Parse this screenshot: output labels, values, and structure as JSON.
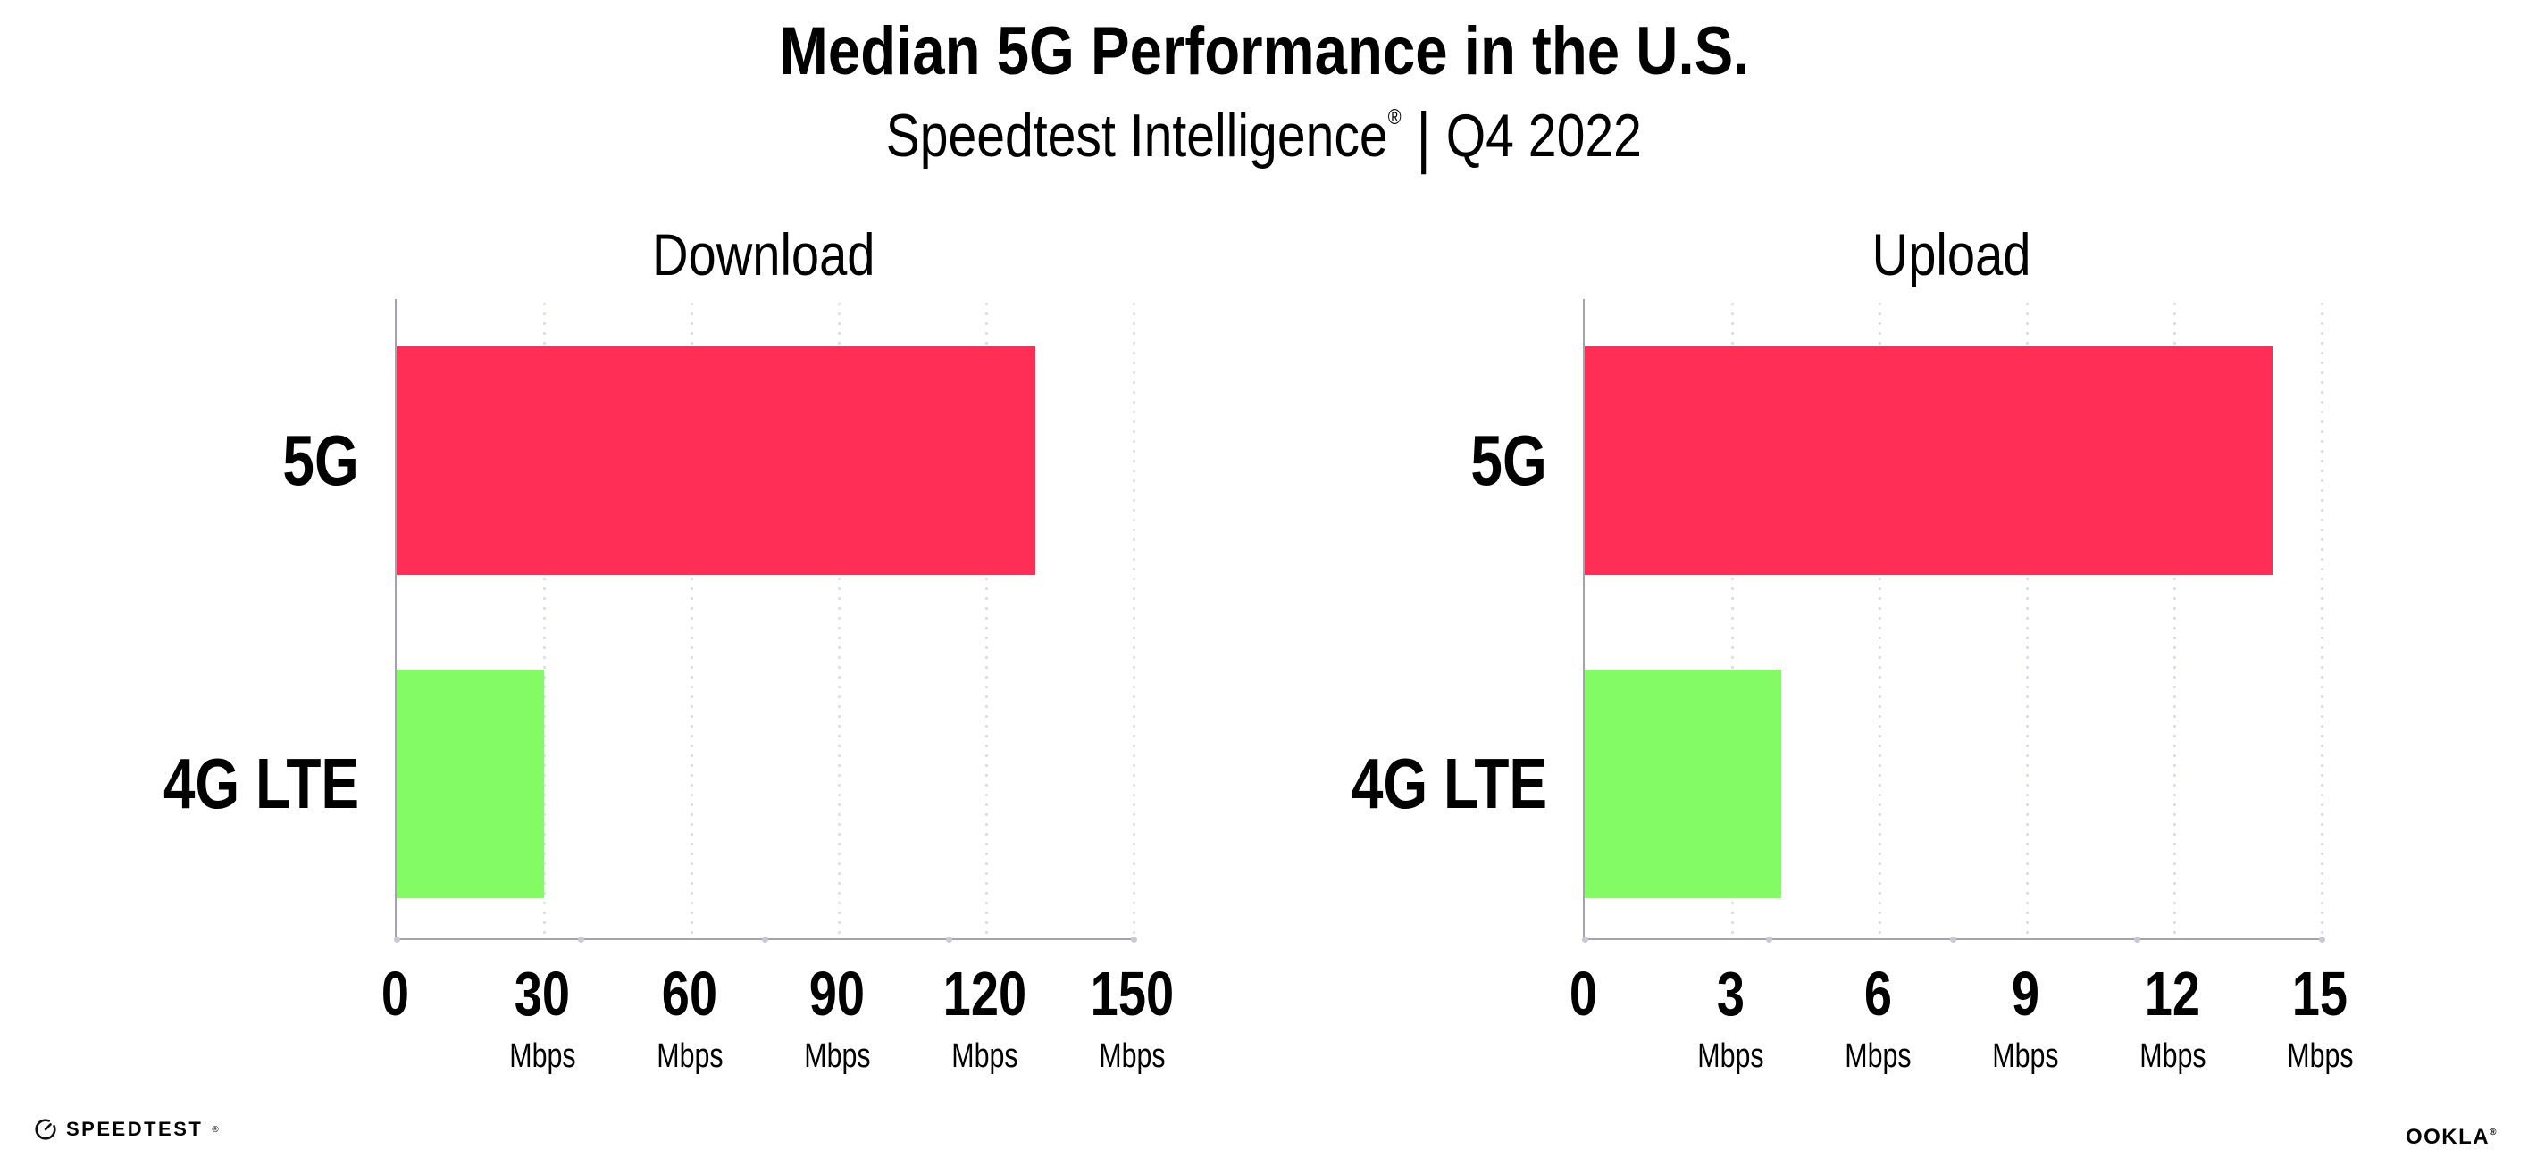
{
  "header": {
    "title": "Median 5G Performance in the U.S.",
    "subtitle_brand": "Speedtest Intelligence",
    "subtitle_reg": "®",
    "subtitle_separator": "|",
    "subtitle_period": "Q4 2022"
  },
  "chart_data": [
    {
      "type": "bar",
      "orientation": "horizontal",
      "title": "Download",
      "categories": [
        "5G",
        "4G LTE"
      ],
      "values": [
        130,
        30
      ],
      "unit": "Mbps",
      "xticks": [
        0,
        30,
        60,
        90,
        120,
        150
      ],
      "xlim": [
        0,
        150
      ],
      "bar_colors": [
        "#ff2e56",
        "#83fb64"
      ],
      "grid": "vertical-dotted",
      "legend": "none"
    },
    {
      "type": "bar",
      "orientation": "horizontal",
      "title": "Upload",
      "categories": [
        "5G",
        "4G LTE"
      ],
      "values": [
        14,
        4
      ],
      "unit": "Mbps",
      "xticks": [
        0,
        3,
        6,
        9,
        12,
        15
      ],
      "xlim": [
        0,
        15
      ],
      "bar_colors": [
        "#ff2e56",
        "#83fb64"
      ],
      "grid": "vertical-dotted",
      "legend": "none"
    }
  ],
  "footer": {
    "speedtest_logo_text": "SPEEDTEST",
    "speedtest_reg": "®",
    "ookla_logo_text": "OOKLA",
    "ookla_reg": "®"
  },
  "colors": {
    "bar_5g": "#ff2e56",
    "bar_4g_lte": "#83fb64",
    "gridline": "#dcdce8",
    "axis": "#a3a3ab",
    "axis_dot": "#c9c9d6",
    "text": "#000000",
    "background": "#ffffff"
  }
}
